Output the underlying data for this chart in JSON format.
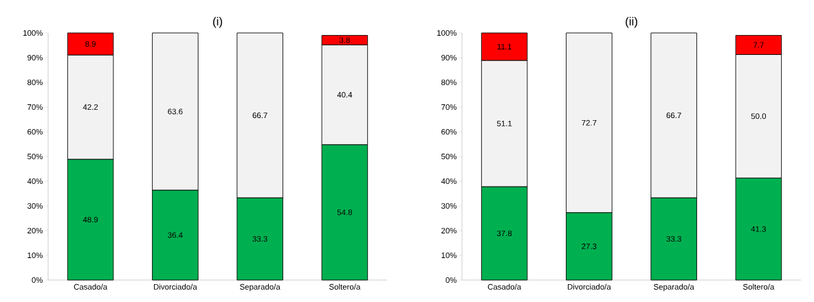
{
  "chart_data": [
    {
      "type": "bar",
      "stacked": true,
      "title": "(i)",
      "categories": [
        "Casado/a",
        "Divorciado/a",
        "Separado/a",
        "Soltero/a"
      ],
      "series": [
        {
          "color": "#00b050",
          "values": [
            48.9,
            36.4,
            33.3,
            54.8
          ],
          "value_labels": [
            "48.9",
            "36.4",
            "33.3",
            "54.8"
          ]
        },
        {
          "color": "#f2f2f2",
          "values": [
            42.2,
            63.6,
            66.7,
            40.4
          ],
          "value_labels": [
            "42.2",
            "63.6",
            "66.7",
            "40.4"
          ]
        },
        {
          "color": "#ff0000",
          "values": [
            8.9,
            null,
            null,
            3.8
          ],
          "value_labels": [
            "8.9",
            null,
            null,
            "3.8"
          ]
        }
      ],
      "ylim": [
        0,
        100
      ],
      "yticks": [
        {
          "value": 0,
          "label": "0%"
        },
        {
          "value": 10,
          "label": "10%"
        },
        {
          "value": 20,
          "label": "20%"
        },
        {
          "value": 30,
          "label": "30%"
        },
        {
          "value": 40,
          "label": "40%"
        },
        {
          "value": 50,
          "label": "50%"
        },
        {
          "value": 60,
          "label": "60%"
        },
        {
          "value": 70,
          "label": "70%"
        },
        {
          "value": 80,
          "label": "80%"
        },
        {
          "value": 90,
          "label": "90%"
        },
        {
          "value": 100,
          "label": "100%"
        }
      ]
    },
    {
      "type": "bar",
      "stacked": true,
      "title": "(ii)",
      "categories": [
        "Casado/a",
        "Divorciado/a",
        "Separado/a",
        "Soltero/a"
      ],
      "series": [
        {
          "color": "#00b050",
          "values": [
            37.8,
            27.3,
            33.3,
            41.3
          ],
          "value_labels": [
            "37.8",
            "27.3",
            "33.3",
            "41.3"
          ]
        },
        {
          "color": "#f2f2f2",
          "values": [
            51.1,
            72.7,
            66.7,
            50.0
          ],
          "value_labels": [
            "51.1",
            "72.7",
            "66.7",
            "50.0"
          ]
        },
        {
          "color": "#ff0000",
          "values": [
            11.1,
            null,
            null,
            7.7
          ],
          "value_labels": [
            "11.1",
            null,
            null,
            "7.7"
          ]
        }
      ],
      "ylim": [
        0,
        100
      ],
      "yticks": [
        {
          "value": 0,
          "label": "0%"
        },
        {
          "value": 10,
          "label": "10%"
        },
        {
          "value": 20,
          "label": "20%"
        },
        {
          "value": 30,
          "label": "30%"
        },
        {
          "value": 40,
          "label": "40%"
        },
        {
          "value": 50,
          "label": "50%"
        },
        {
          "value": 60,
          "label": "60%"
        },
        {
          "value": 70,
          "label": "70%"
        },
        {
          "value": 80,
          "label": "80%"
        },
        {
          "value": 90,
          "label": "90%"
        },
        {
          "value": 100,
          "label": "100%"
        }
      ]
    }
  ]
}
